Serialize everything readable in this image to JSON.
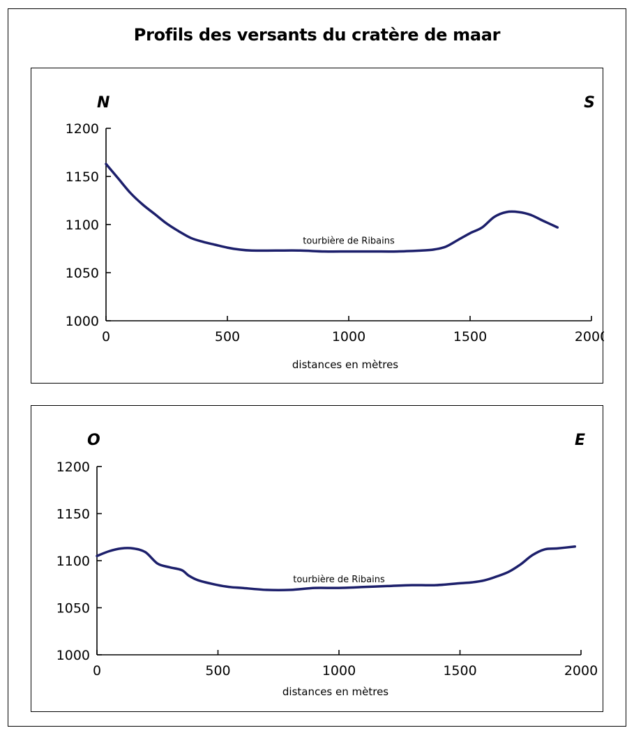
{
  "title": "Profils des versants du cratère de maar",
  "colors": {
    "line": "#1c1f6b",
    "axis": "#000000",
    "frame": "#000000"
  },
  "chart_data": [
    {
      "type": "line",
      "direction_left": "N",
      "direction_right": "S",
      "xlabel": "distances en mètres",
      "ylabel": "",
      "xlim": [
        0,
        2000
      ],
      "ylim": [
        1000,
        1200
      ],
      "xticks": [
        0,
        500,
        1000,
        1500,
        2000
      ],
      "yticks": [
        1000,
        1050,
        1100,
        1150,
        1200
      ],
      "annotation": {
        "text": "tourbière de Ribains",
        "x": 1000,
        "y": 1080
      },
      "series": [
        {
          "x": [
            0,
            50,
            100,
            150,
            200,
            250,
            300,
            350,
            400,
            450,
            500,
            550,
            600,
            700,
            800,
            900,
            1000,
            1100,
            1200,
            1300,
            1350,
            1400,
            1450,
            1500,
            1550,
            1600,
            1650,
            1700,
            1750,
            1800,
            1860
          ],
          "y": [
            1163,
            1148,
            1133,
            1121,
            1111,
            1101,
            1093,
            1086,
            1082,
            1079,
            1076,
            1074,
            1073,
            1073,
            1073,
            1072,
            1072,
            1072,
            1072,
            1073,
            1074,
            1077,
            1084,
            1091,
            1097,
            1108,
            1113,
            1113,
            1110,
            1104,
            1097
          ]
        }
      ]
    },
    {
      "type": "line",
      "direction_left": "O",
      "direction_right": "E",
      "xlabel": "distances en mètres",
      "ylabel": "",
      "xlim": [
        0,
        2000
      ],
      "ylim": [
        1000,
        1200
      ],
      "xticks": [
        0,
        500,
        1000,
        1500,
        2000
      ],
      "yticks": [
        1000,
        1050,
        1100,
        1150,
        1200
      ],
      "annotation": {
        "text": "tourbière de Ribains",
        "x": 1000,
        "y": 1077
      },
      "series": [
        {
          "x": [
            0,
            50,
            100,
            150,
            200,
            250,
            300,
            350,
            380,
            420,
            500,
            550,
            600,
            700,
            800,
            900,
            1000,
            1100,
            1200,
            1300,
            1400,
            1500,
            1550,
            1600,
            1650,
            1700,
            1750,
            1800,
            1850,
            1900,
            1975
          ],
          "y": [
            1105,
            1110,
            1113,
            1113,
            1109,
            1097,
            1093,
            1090,
            1084,
            1079,
            1074,
            1072,
            1071,
            1069,
            1069,
            1071,
            1071,
            1072,
            1073,
            1074,
            1074,
            1076,
            1077,
            1079,
            1083,
            1088,
            1096,
            1106,
            1112,
            1113,
            1115
          ]
        }
      ]
    }
  ]
}
